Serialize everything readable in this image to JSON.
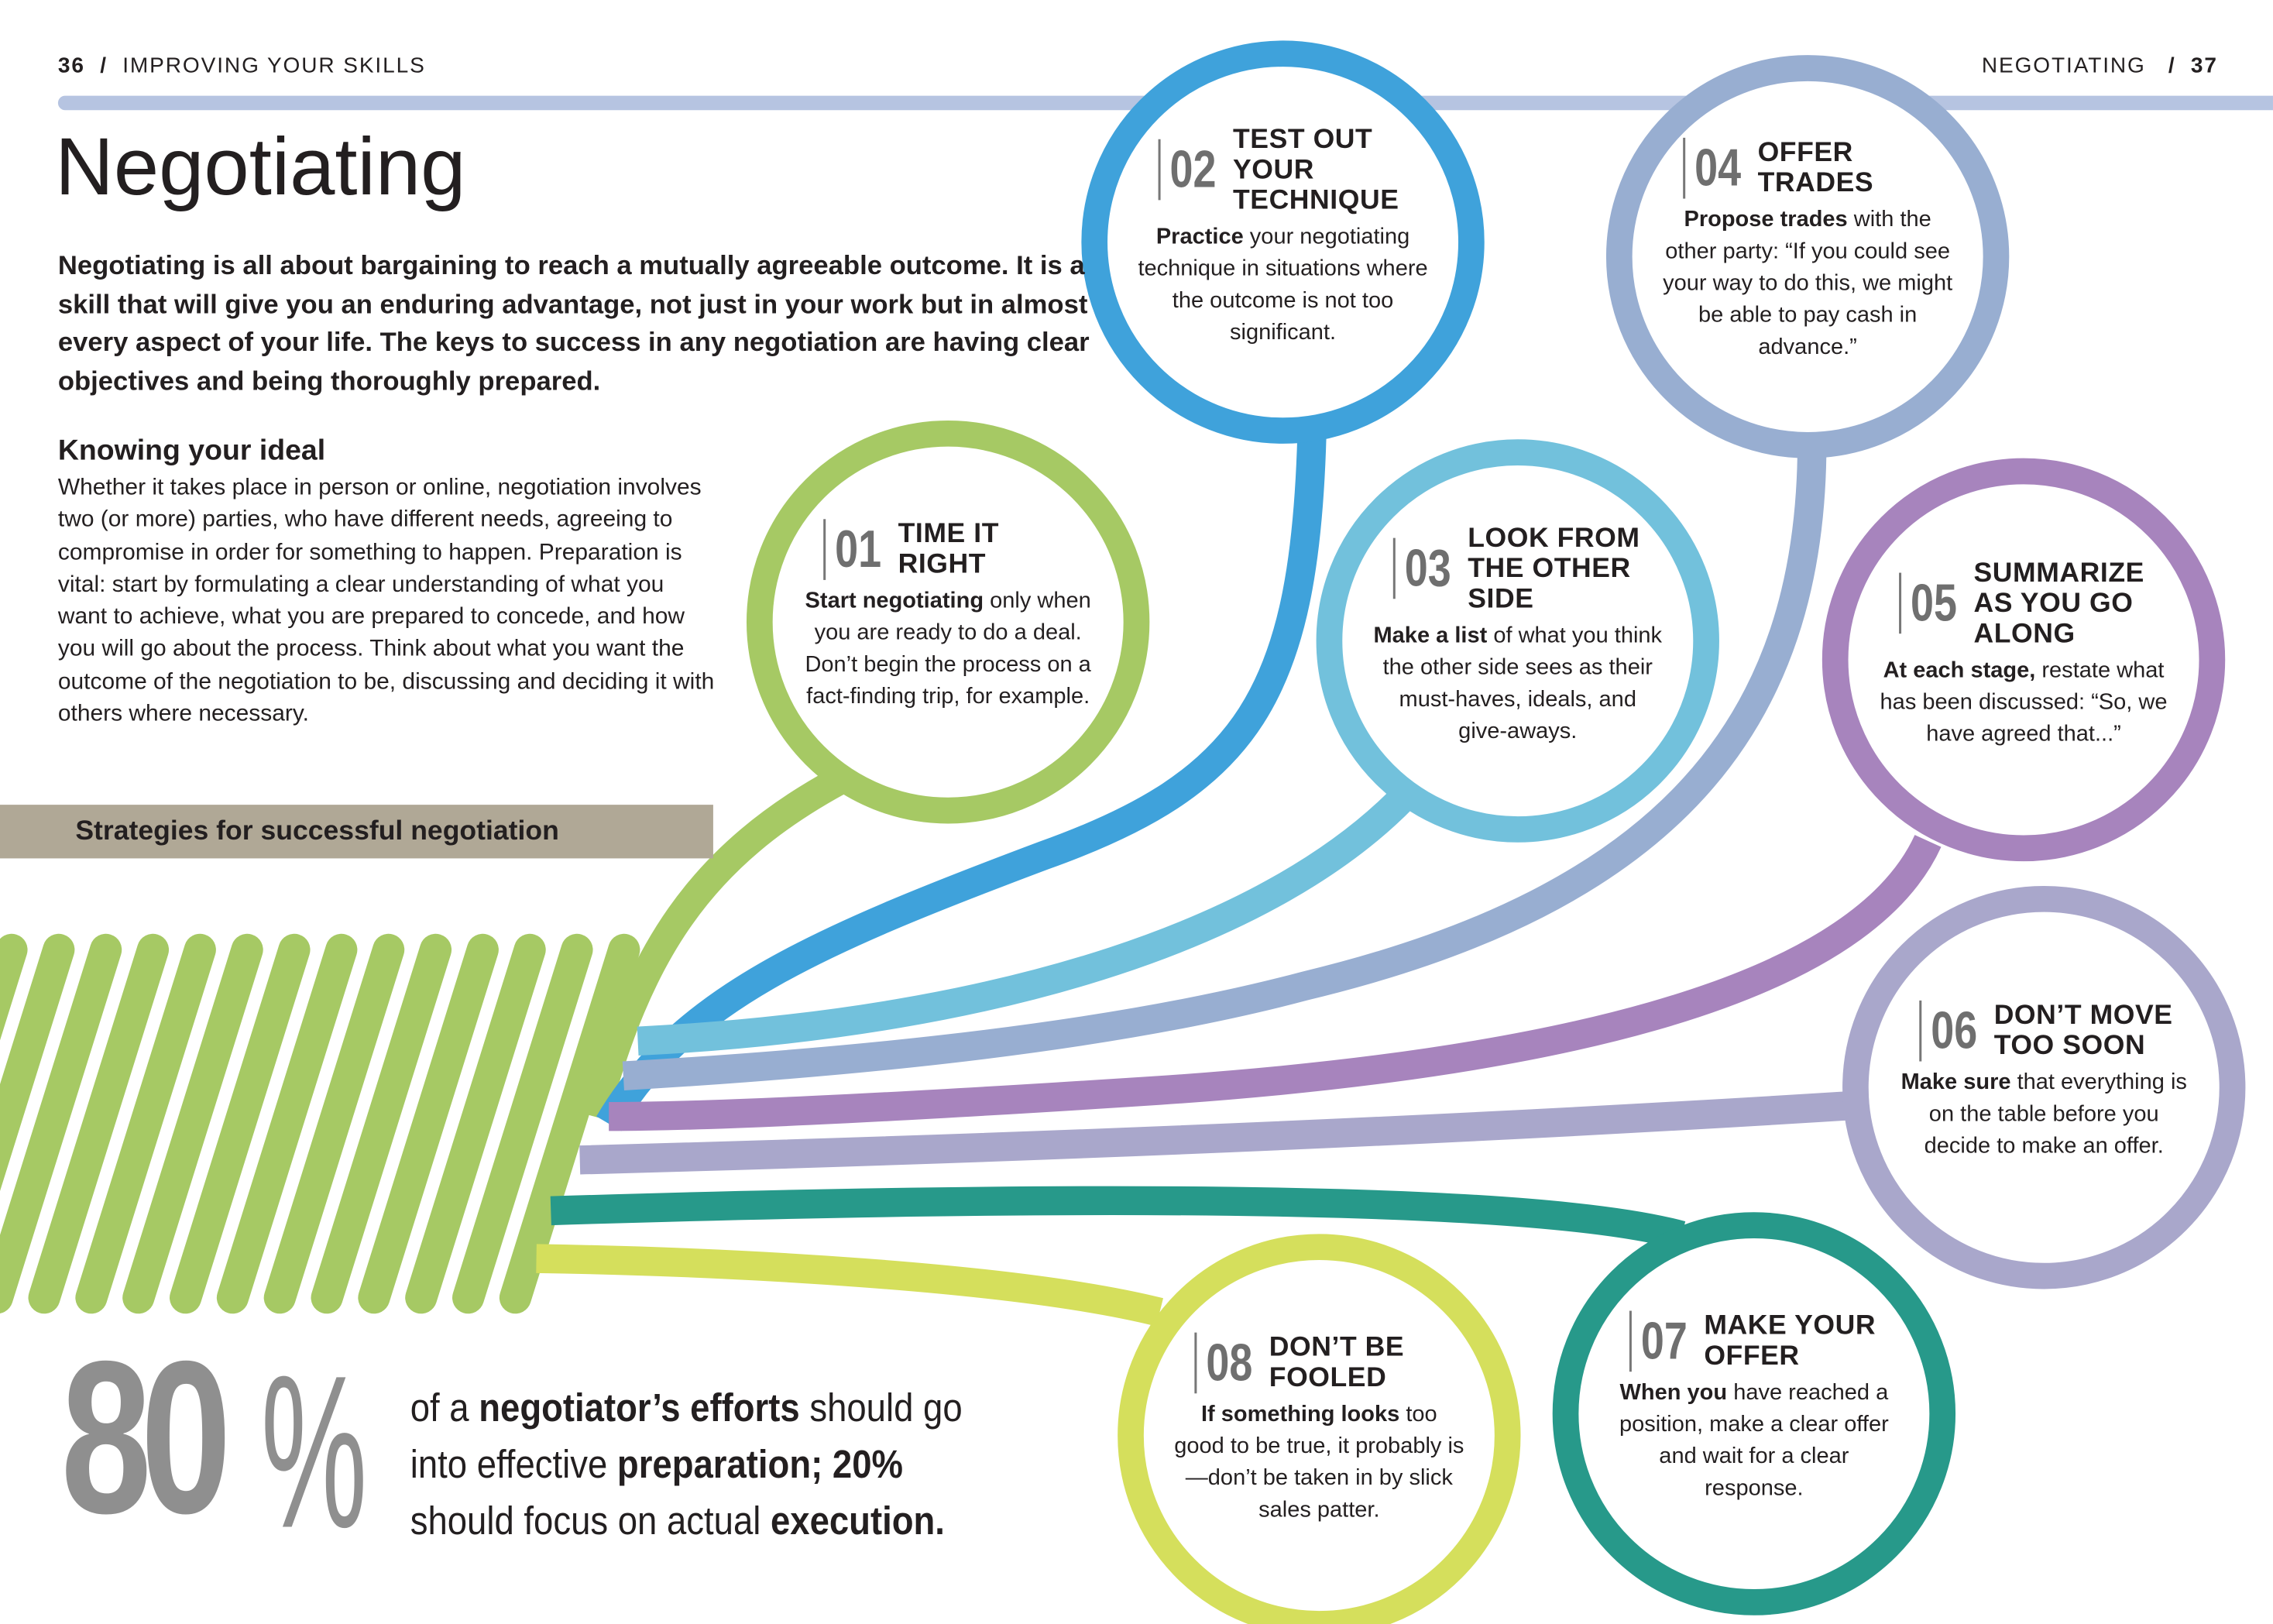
{
  "header": {
    "left_page": "36",
    "separator": "/",
    "left_section": "IMPROVING YOUR SKILLS",
    "right_section": "NEGOTIATING",
    "right_page": "37"
  },
  "title": "Negotiating",
  "intro": "Negotiating is all about bargaining to reach a mutually agreeable outcome. It is a skill that will give you an enduring advantage, not just in your work but in almost every aspect of your life. The keys to success in any negotiation are having clear objectives and being thoroughly prepared.",
  "section": {
    "heading": "Knowing your ideal",
    "body": "Whether it takes place in person or online, negotiation involves two (or more) parties, who have different needs, agreeing to compromise in order for something to happen. Preparation is vital: start by formulating a clear understanding of what you want to achieve, what you are prepared to concede, and how you will go about the process. Think about what you want the outcome of the negotiation to be, discussing and deciding it with others where necessary."
  },
  "banner": "Strategies for successful negotiation",
  "stat": {
    "number": "80",
    "unit": "%",
    "parts": [
      {
        "text": "of a ",
        "bold": false
      },
      {
        "text": "negotiator’s efforts",
        "bold": true
      },
      {
        "text": " should go into effective ",
        "bold": false
      },
      {
        "text": "preparation; 20%",
        "bold": true
      },
      {
        "text": " should focus on actual ",
        "bold": false
      },
      {
        "text": "execution.",
        "bold": true
      }
    ]
  },
  "strategies": [
    {
      "number": "01",
      "title": "TIME IT RIGHT",
      "lead": "Start negotiating",
      "text": " only when you are ready to do a deal. Don’t begin the process on a fact-finding trip, for example.",
      "color": "#a6c964"
    },
    {
      "number": "02",
      "title": "TEST OUT YOUR TECHNIQUE",
      "lead": "Practice",
      "text": " your negotiating technique in situations where the outcome is not too significant.",
      "color": "#3fa2db"
    },
    {
      "number": "03",
      "title": "LOOK FROM THE OTHER SIDE",
      "lead": "Make a list",
      "text": " of what you think the other side sees as their must-haves, ideals, and give-aways.",
      "color": "#72c1dc"
    },
    {
      "number": "04",
      "title": "OFFER TRADES",
      "lead": "Propose trades",
      "text": " with the other party: “If you could see your way to do this, we might be able to pay cash in advance.”",
      "color": "#98aed1"
    },
    {
      "number": "05",
      "title": "SUMMARIZE AS YOU GO ALONG",
      "lead": "At each stage,",
      "text": " restate what has been discussed: “So, we have agreed that...”",
      "color": "#a784bd"
    },
    {
      "number": "06",
      "title": "DON’T MOVE TOO SOON",
      "lead": "Make sure",
      "text": " that everything is on the table before you decide to make an offer.",
      "color": "#a9a7cb"
    },
    {
      "number": "07",
      "title": "MAKE YOUR OFFER",
      "lead": "When you",
      "text": " have reached a position, make a clear offer and wait for a clear response.",
      "color": "#27998a"
    },
    {
      "number": "08",
      "title": "DON’T BE FOOLED",
      "lead": "If something looks",
      "text": " too good to be true, it probably is—don’t be taken in by slick sales patter.",
      "color": "#d5df5c"
    }
  ]
}
